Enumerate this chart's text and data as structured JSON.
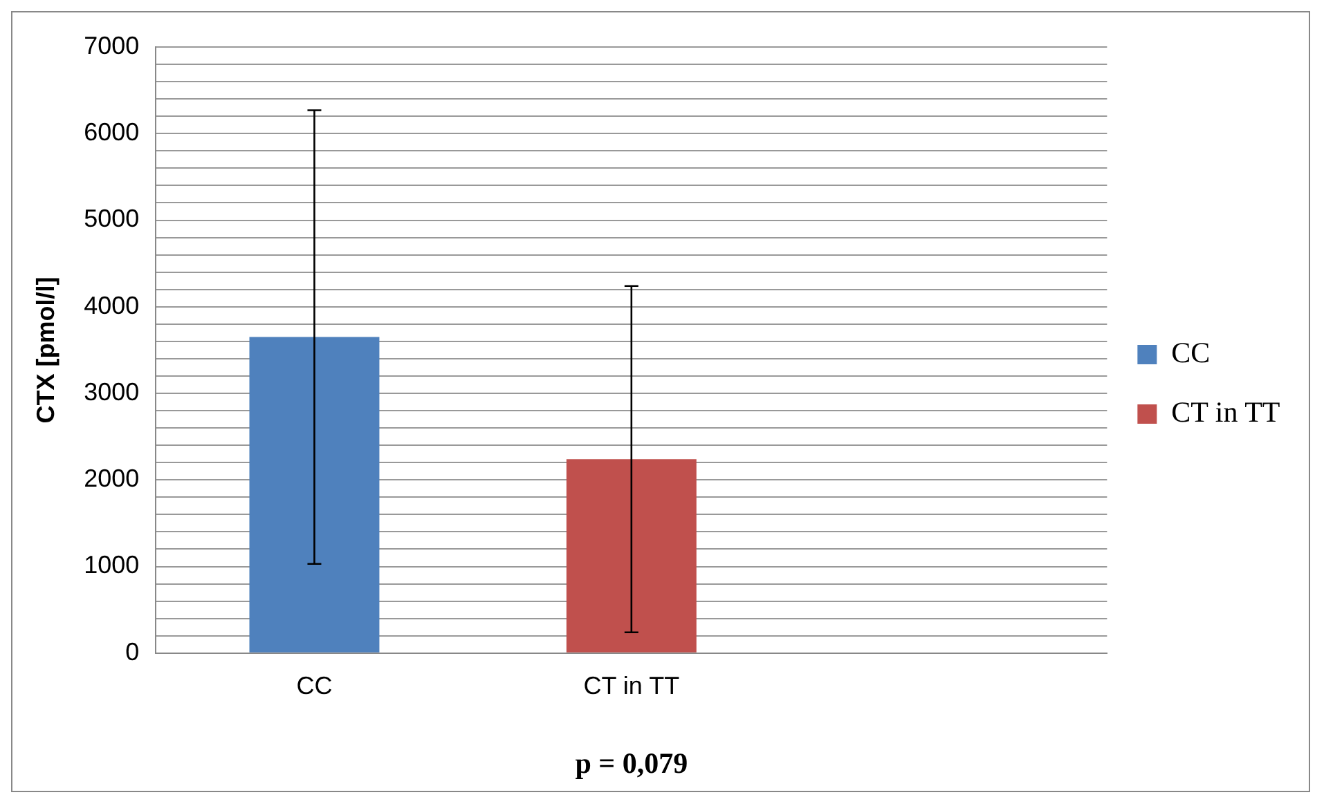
{
  "chart_data": {
    "type": "bar",
    "categories": [
      "CC",
      "CT in TT",
      null
    ],
    "series": [
      {
        "name": "CC",
        "color": "#4f81bd",
        "values": [
          3650,
          null,
          null
        ],
        "errors": [
          2620,
          null,
          null
        ]
      },
      {
        "name": "CT in TT",
        "color": "#c0504d",
        "values": [
          null,
          2240,
          null
        ],
        "errors": [
          null,
          2000,
          null
        ]
      }
    ],
    "ylabel": "CTX [pmol/l]",
    "ylim": [
      0,
      7000
    ],
    "yticks": [
      0,
      {
        "value": 200,
        "label": null
      },
      {
        "value": 400,
        "label": null
      },
      {
        "value": 600,
        "label": null
      },
      {
        "value": 800,
        "label": null
      },
      1000,
      {
        "value": 1200,
        "label": null
      },
      {
        "value": 1400,
        "label": null
      },
      {
        "value": 1600,
        "label": null
      },
      {
        "value": 1800,
        "label": null
      },
      2000,
      {
        "value": 2200,
        "label": null
      },
      {
        "value": 2400,
        "label": null
      },
      {
        "value": 2600,
        "label": null
      },
      {
        "value": 2800,
        "label": null
      },
      3000,
      {
        "value": 3200,
        "label": null
      },
      {
        "value": 3400,
        "label": null
      },
      {
        "value": 3600,
        "label": null
      },
      {
        "value": 3800,
        "label": null
      },
      4000,
      {
        "value": 4200,
        "label": null
      },
      {
        "value": 4400,
        "label": null
      },
      {
        "value": 4600,
        "label": null
      },
      {
        "value": 4800,
        "label": null
      },
      5000,
      {
        "value": 5200,
        "label": null
      },
      {
        "value": 5400,
        "label": null
      },
      {
        "value": 5600,
        "label": null
      },
      {
        "value": 5800,
        "label": null
      },
      6000,
      {
        "value": 6200,
        "label": null
      },
      {
        "value": 6400,
        "label": null
      },
      {
        "value": 6600,
        "label": null
      },
      {
        "value": 6800,
        "label": null
      },
      7000
    ],
    "grid": "y",
    "legend": "right",
    "annotations": [
      "p = 0,079"
    ]
  }
}
